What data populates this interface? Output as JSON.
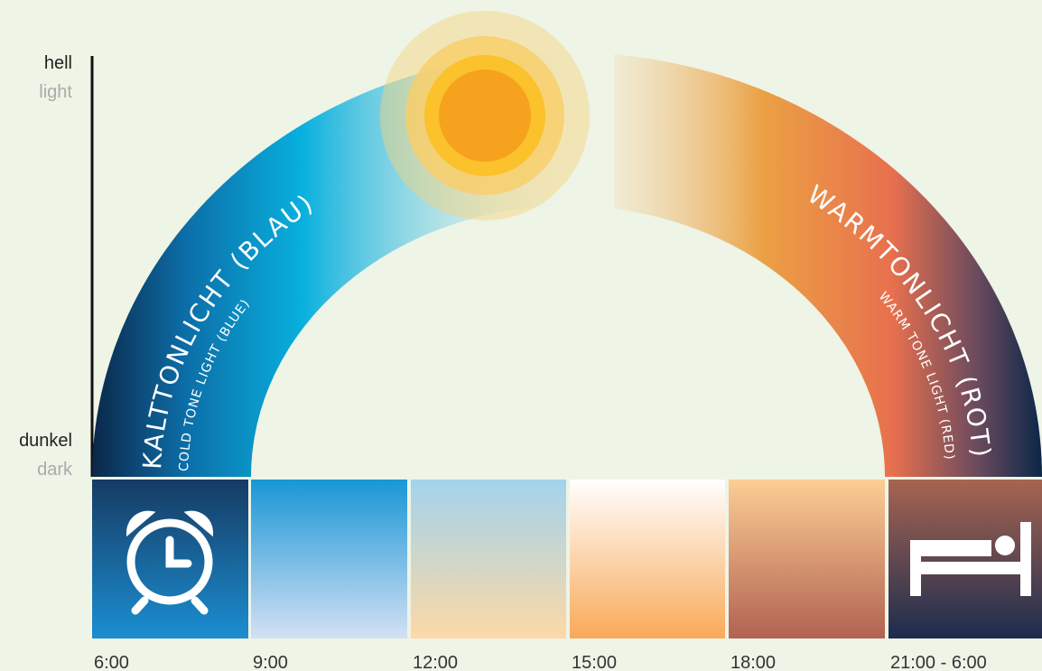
{
  "axis": {
    "top": "hell",
    "top_en": "light",
    "bottom": "dunkel",
    "bottom_en": "dark"
  },
  "arcs": [
    {
      "label": "KALTTONLICHT (BLAU)",
      "sublabel": "COLD TONE LIGHT (BLUE)"
    },
    {
      "label": "WARMTONLICHT (ROT)",
      "sublabel": "WARM TONE LIGHT (RED)"
    }
  ],
  "times": [
    "6:00",
    "9:00",
    "12:00",
    "15:00",
    "18:00",
    "21:00 - 6:00"
  ]
}
